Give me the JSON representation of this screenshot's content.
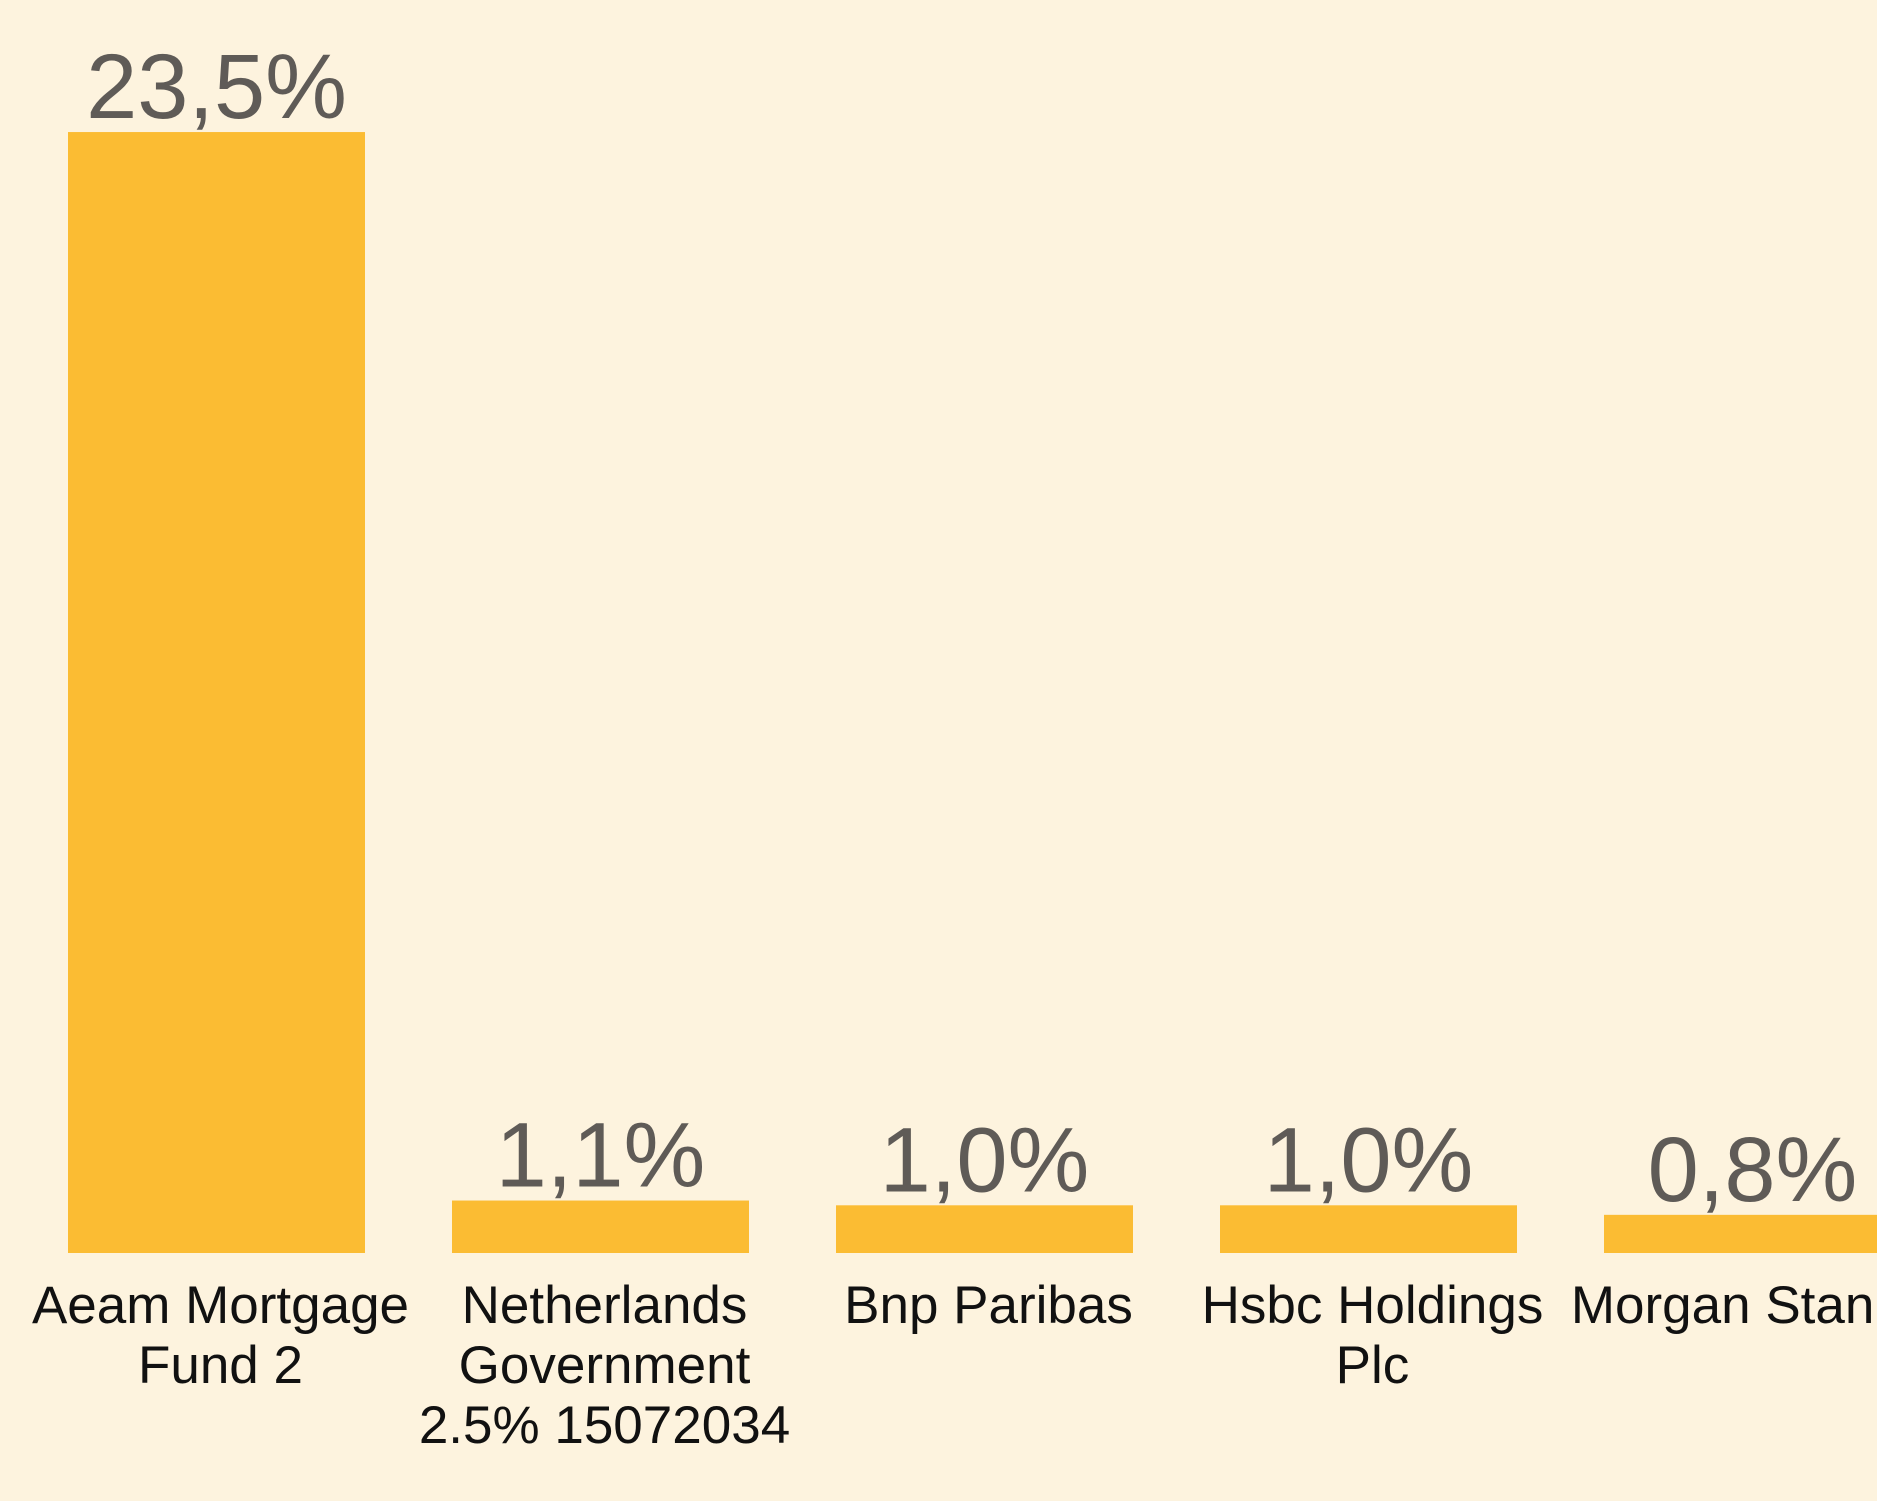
{
  "chart_data": {
    "type": "bar",
    "categories": [
      "Aeam Mortgage Fund 2",
      "Netherlands Government 2.5% 15072034",
      "Bnp Paribas",
      "Hsbc Holdings Plc",
      "Morgan Stanley"
    ],
    "values": [
      23.5,
      1.1,
      1.0,
      1.0,
      0.8
    ],
    "value_labels": [
      "23,5%",
      "1,1%",
      "1,0%",
      "1,0%",
      "0,8%"
    ],
    "color": "#fbbc33"
  }
}
